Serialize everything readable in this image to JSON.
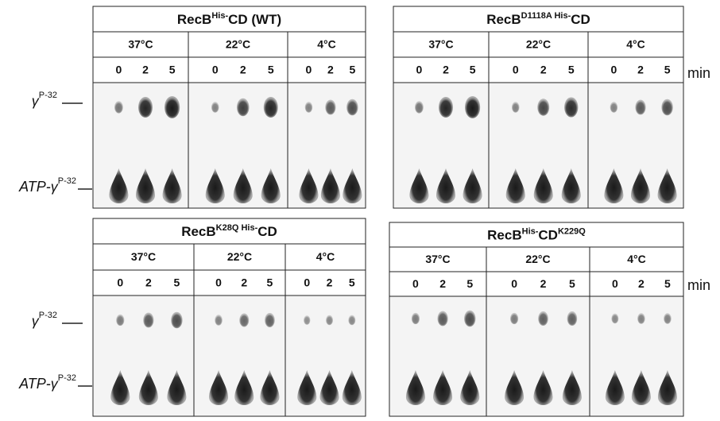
{
  "side_labels": {
    "gamma": {
      "text": "γ",
      "sup": "P-32"
    },
    "atp": {
      "text": "ATP-γ",
      "sup": "P-32"
    }
  },
  "unit": "min",
  "panels": [
    {
      "title": [
        {
          "text": "RecB",
          "superscript": false
        },
        {
          "text": "His-",
          "superscript": true
        },
        {
          "text": "CD (WT)",
          "superscript": false
        }
      ],
      "temperatures": [
        {
          "label": "37°C",
          "times": [
            "0",
            "2",
            "5"
          ]
        },
        {
          "label": "22°C",
          "times": [
            "0",
            "2",
            "5"
          ]
        },
        {
          "label": "4°C",
          "times": [
            "0",
            "2",
            "5"
          ]
        }
      ]
    },
    {
      "title": [
        {
          "text": "RecB",
          "superscript": false
        },
        {
          "text": "D1118A His-",
          "superscript": true
        },
        {
          "text": "CD",
          "superscript": false
        }
      ],
      "temperatures": [
        {
          "label": "37°C",
          "times": [
            "0",
            "2",
            "5"
          ]
        },
        {
          "label": "22°C",
          "times": [
            "0",
            "2",
            "5"
          ]
        },
        {
          "label": "4°C",
          "times": [
            "0",
            "2",
            "5"
          ]
        }
      ]
    },
    {
      "title": [
        {
          "text": "RecB",
          "superscript": false
        },
        {
          "text": "K28Q His-",
          "superscript": true
        },
        {
          "text": "CD",
          "superscript": false
        }
      ],
      "temperatures": [
        {
          "label": "37°C",
          "times": [
            "0",
            "2",
            "5"
          ]
        },
        {
          "label": "22°C",
          "times": [
            "0",
            "2",
            "5"
          ]
        },
        {
          "label": "4°C",
          "times": [
            "0",
            "2",
            "5"
          ]
        }
      ]
    },
    {
      "title": [
        {
          "text": "RecB",
          "superscript": false
        },
        {
          "text": "His-",
          "superscript": true
        },
        {
          "text": "CD",
          "superscript": false
        },
        {
          "text": "K229Q",
          "superscript": true
        }
      ],
      "temperatures": [
        {
          "label": "37°C",
          "times": [
            "0",
            "2",
            "5"
          ]
        },
        {
          "label": "22°C",
          "times": [
            "0",
            "2",
            "5"
          ]
        },
        {
          "label": "4°C",
          "times": [
            "0",
            "2",
            "5"
          ]
        }
      ]
    }
  ]
}
